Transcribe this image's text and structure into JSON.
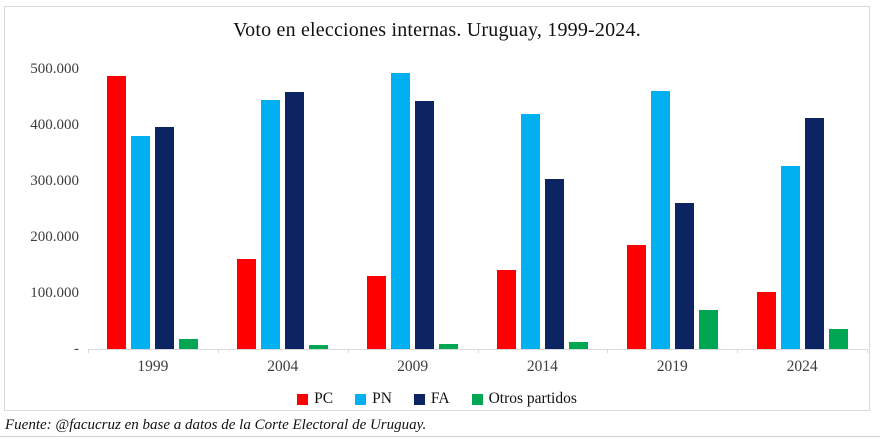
{
  "chart_data": {
    "type": "bar",
    "title": "Voto en elecciones internas. Uruguay, 1999-2024.",
    "categories": [
      "1999",
      "2004",
      "2009",
      "2014",
      "2019",
      "2024"
    ],
    "series": [
      {
        "name": "PC",
        "color": "#ff0000",
        "values": [
          487000,
          160000,
          130000,
          141000,
          185000,
          102000
        ]
      },
      {
        "name": "PN",
        "color": "#00b0f0",
        "values": [
          380000,
          444000,
          493000,
          420000,
          460000,
          326000
        ]
      },
      {
        "name": "FA",
        "color": "#0c2461",
        "values": [
          397000,
          459000,
          443000,
          304000,
          260000,
          413000
        ]
      },
      {
        "name": "Otros partidos",
        "color": "#00a651",
        "values": [
          17000,
          7000,
          9000,
          13000,
          70000,
          36000
        ]
      }
    ],
    "ylim": [
      0,
      500000
    ],
    "y_tick_labels": [
      "500.000",
      "400.000",
      "300.000",
      "200.000",
      "100.000",
      "-"
    ],
    "xlabel": "",
    "ylabel": "",
    "grid": false,
    "legend_position": "bottom",
    "axis_color": "#d9d9d9"
  },
  "footer": {
    "text": "Fuente: @facucruz en base a datos de la Corte Electoral de Uruguay."
  }
}
